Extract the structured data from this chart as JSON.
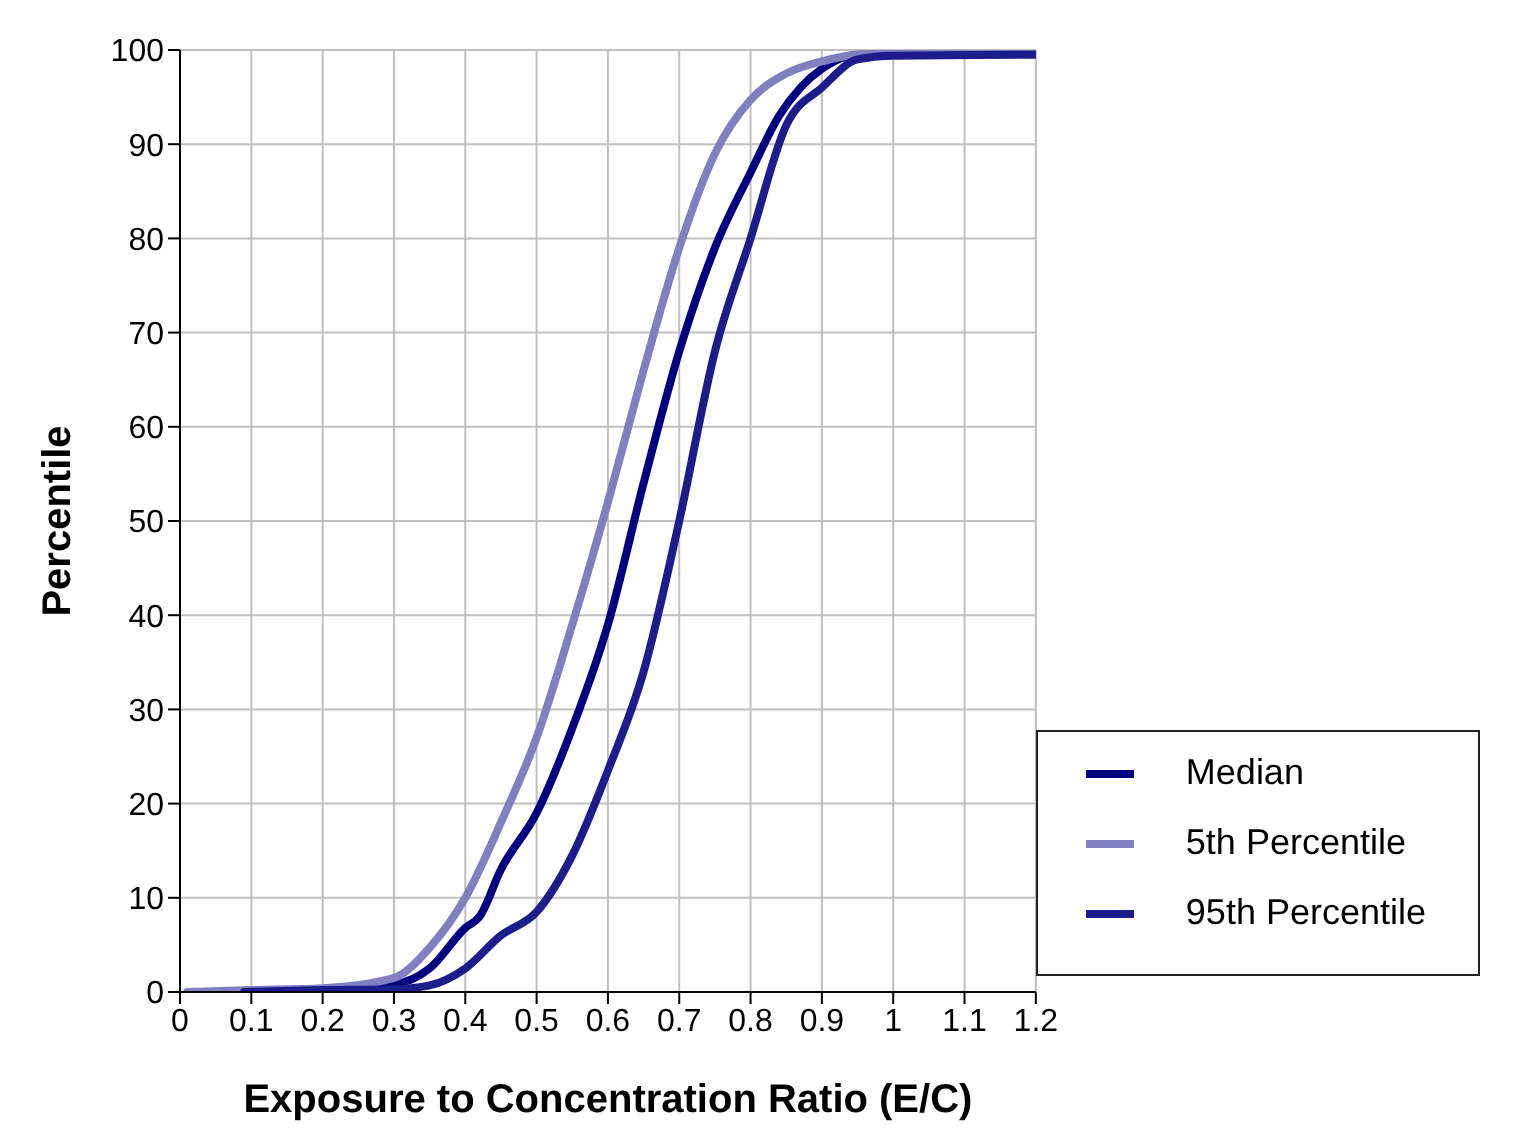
{
  "chart_data": {
    "type": "line",
    "xlabel": "Exposure to Concentration Ratio (E/C)",
    "ylabel": "Percentile",
    "xlim": [
      0,
      1.2
    ],
    "xticks": [
      0,
      0.1,
      0.2,
      0.3,
      0.4,
      0.5,
      0.6,
      0.7,
      0.8,
      0.9,
      1,
      1.1,
      1.2
    ],
    "ylim": [
      0,
      100
    ],
    "yticks": [
      0,
      10,
      20,
      30,
      40,
      50,
      60,
      70,
      80,
      90,
      100
    ],
    "grid": true,
    "legend": "bottom right",
    "marker": "none",
    "line_style": "solid",
    "series": [
      {
        "name": "Median",
        "color": "#000080",
        "x": [
          0.09,
          0.2,
          0.3,
          0.35,
          0.4,
          0.42,
          0.45,
          0.5,
          0.55,
          0.6,
          0.65,
          0.7,
          0.75,
          0.8,
          0.84,
          0.87,
          0.9,
          0.95,
          1,
          1.2
        ],
        "values": [
          0,
          0.3,
          0.8,
          2.5,
          6.8,
          8,
          13,
          19,
          28,
          39,
          54,
          68,
          79,
          87,
          93,
          96,
          98,
          99.5,
          99.5,
          99.6
        ]
      },
      {
        "name": "5th Percentile",
        "color": "#8080c0",
        "x": [
          0.01,
          0.1,
          0.2,
          0.3,
          0.35,
          0.4,
          0.45,
          0.5,
          0.55,
          0.6,
          0.65,
          0.7,
          0.75,
          0.8,
          0.85,
          0.9,
          0.95,
          1,
          1.2
        ],
        "values": [
          0,
          0.2,
          0.4,
          1.5,
          4.7,
          10,
          18,
          27,
          39,
          52,
          66,
          79,
          89,
          94.7,
          97.5,
          98.8,
          99.5,
          99.6,
          99.6
        ]
      },
      {
        "name": "95th Percentile",
        "color": "#1c1c8c",
        "x": [
          0.09,
          0.2,
          0.3,
          0.35,
          0.4,
          0.45,
          0.5,
          0.55,
          0.6,
          0.65,
          0.7,
          0.75,
          0.8,
          0.85,
          0.9,
          0.95,
          1,
          1.2
        ],
        "values": [
          0,
          0.2,
          0.3,
          0.7,
          2.5,
          6,
          8.5,
          14.5,
          23.5,
          34,
          50,
          68,
          80,
          92,
          96,
          99,
          99.4,
          99.5
        ]
      }
    ]
  }
}
